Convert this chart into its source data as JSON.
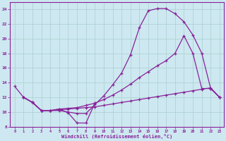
{
  "xlabel": "Windchill (Refroidissement éolien,°C)",
  "xlim": [
    -0.5,
    23.5
  ],
  "ylim": [
    8,
    25
  ],
  "yticks": [
    8,
    10,
    12,
    14,
    16,
    18,
    20,
    22,
    24
  ],
  "xticks": [
    0,
    1,
    2,
    3,
    4,
    5,
    6,
    7,
    8,
    9,
    10,
    11,
    12,
    13,
    14,
    15,
    16,
    17,
    18,
    19,
    20,
    21,
    22,
    23
  ],
  "bg_color": "#cde8f0",
  "line_color": "#882299",
  "grid_color": "#aacfcf",
  "line1_x": [
    0,
    1,
    2,
    3,
    4,
    5,
    6,
    7,
    8,
    9
  ],
  "line1_y": [
    13.5,
    12.0,
    11.3,
    10.2,
    10.2,
    10.4,
    9.9,
    8.5,
    8.5,
    11.2
  ],
  "line2_x": [
    1,
    2,
    3,
    4,
    5,
    6,
    7,
    8,
    9,
    10,
    11,
    12,
    13,
    14,
    15,
    16,
    17,
    18,
    19,
    20,
    21,
    22,
    23
  ],
  "line2_y": [
    12.0,
    11.3,
    10.2,
    10.2,
    10.3,
    10.4,
    10.5,
    10.6,
    10.7,
    10.9,
    11.1,
    11.3,
    11.5,
    11.7,
    11.9,
    12.1,
    12.3,
    12.5,
    12.7,
    12.9,
    13.1,
    13.3,
    12.0
  ],
  "line3_x": [
    1,
    2,
    3,
    4,
    5,
    6,
    7,
    8,
    9,
    10,
    11,
    12,
    13,
    14,
    15,
    16,
    17,
    18,
    19,
    20,
    21,
    22,
    23
  ],
  "line3_y": [
    12.0,
    11.3,
    10.2,
    10.2,
    10.4,
    10.5,
    10.6,
    10.9,
    11.2,
    11.7,
    12.3,
    13.0,
    13.8,
    14.7,
    15.5,
    16.3,
    17.0,
    18.0,
    20.4,
    18.0,
    13.2,
    13.2,
    12.0
  ],
  "line4_x": [
    1,
    2,
    3,
    4,
    5,
    6,
    7,
    8,
    9,
    10,
    11,
    12,
    13,
    14,
    15,
    16,
    17,
    18,
    19,
    20,
    21,
    22,
    23
  ],
  "line4_y": [
    12.0,
    11.3,
    10.2,
    10.2,
    10.2,
    10.0,
    9.8,
    9.8,
    11.0,
    12.2,
    13.7,
    15.3,
    17.8,
    21.5,
    23.8,
    24.1,
    24.1,
    23.4,
    22.3,
    20.5,
    18.0,
    13.2,
    12.0
  ]
}
